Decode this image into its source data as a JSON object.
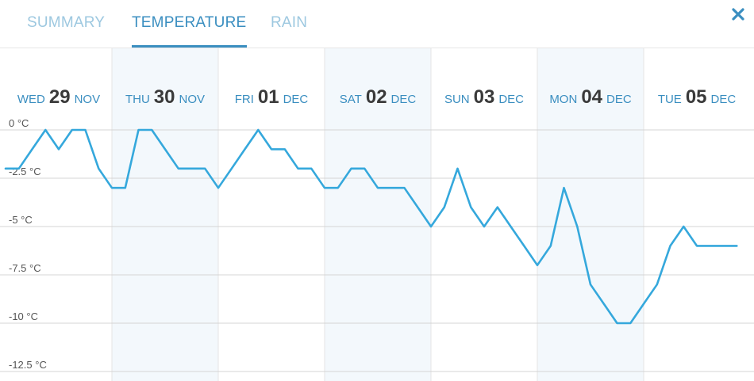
{
  "tabs": [
    {
      "label": "SUMMARY",
      "active": false
    },
    {
      "label": "TEMPERATURE",
      "active": true
    },
    {
      "label": "RAIN",
      "active": false
    }
  ],
  "close_icon": "close-icon",
  "colors": {
    "accent": "#3a8ec0",
    "inactive_tab": "#9dc8e0",
    "line": "#35a8dc",
    "shade": "#f3f8fc",
    "grid": "#d4d4d4"
  },
  "chart_data": {
    "type": "line",
    "days": [
      {
        "dow": "WED",
        "day": "29",
        "mon": "NOV",
        "shaded": false
      },
      {
        "dow": "THU",
        "day": "30",
        "mon": "NOV",
        "shaded": true
      },
      {
        "dow": "FRI",
        "day": "01",
        "mon": "DEC",
        "shaded": false
      },
      {
        "dow": "SAT",
        "day": "02",
        "mon": "DEC",
        "shaded": true
      },
      {
        "dow": "SUN",
        "day": "03",
        "mon": "DEC",
        "shaded": false
      },
      {
        "dow": "MON",
        "day": "04",
        "mon": "DEC",
        "shaded": true
      },
      {
        "dow": "TUE",
        "day": "05",
        "mon": "DEC",
        "shaded": false
      }
    ],
    "y_ticks": [
      {
        "value": 0,
        "label": "0 °C"
      },
      {
        "value": -2.5,
        "label": "-2.5 °C"
      },
      {
        "value": -5,
        "label": "-5 °C"
      },
      {
        "value": -7.5,
        "label": "-7.5 °C"
      },
      {
        "value": -10,
        "label": "-10 °C"
      },
      {
        "value": -12.5,
        "label": "-12.5 °C"
      }
    ],
    "ylim": [
      -12.5,
      0
    ],
    "x_range_days": [
      0,
      7
    ],
    "grid": true,
    "series": [
      {
        "values": [
          [
            0.0,
            -2
          ],
          [
            0.125,
            -2
          ],
          [
            0.25,
            -1
          ],
          [
            0.375,
            0
          ],
          [
            0.5,
            -1
          ],
          [
            0.625,
            0
          ],
          [
            0.75,
            0
          ],
          [
            0.875,
            -2
          ],
          [
            1.0,
            -3
          ],
          [
            1.125,
            -3
          ],
          [
            1.25,
            0
          ],
          [
            1.375,
            0
          ],
          [
            1.5,
            -1
          ],
          [
            1.625,
            -2
          ],
          [
            1.75,
            -2
          ],
          [
            1.875,
            -2
          ],
          [
            2.0,
            -3
          ],
          [
            2.125,
            -2
          ],
          [
            2.25,
            -1
          ],
          [
            2.375,
            0
          ],
          [
            2.5,
            -1
          ],
          [
            2.625,
            -1
          ],
          [
            2.75,
            -2
          ],
          [
            2.875,
            -2
          ],
          [
            3.0,
            -3
          ],
          [
            3.125,
            -3
          ],
          [
            3.25,
            -2
          ],
          [
            3.375,
            -2
          ],
          [
            3.5,
            -3
          ],
          [
            3.625,
            -3
          ],
          [
            3.75,
            -3
          ],
          [
            3.875,
            -4
          ],
          [
            4.0,
            -5
          ],
          [
            4.125,
            -4
          ],
          [
            4.25,
            -2
          ],
          [
            4.375,
            -4
          ],
          [
            4.5,
            -5
          ],
          [
            4.625,
            -4
          ],
          [
            4.75,
            -5
          ],
          [
            4.875,
            -6
          ],
          [
            5.0,
            -7
          ],
          [
            5.125,
            -6
          ],
          [
            5.25,
            -3
          ],
          [
            5.375,
            -5
          ],
          [
            5.5,
            -8
          ],
          [
            5.625,
            -9
          ],
          [
            5.75,
            -10
          ],
          [
            5.875,
            -10
          ],
          [
            6.0,
            -9
          ],
          [
            6.125,
            -8
          ],
          [
            6.25,
            -6
          ],
          [
            6.375,
            -5
          ],
          [
            6.5,
            -6
          ],
          [
            6.625,
            -6
          ],
          [
            6.75,
            -6
          ],
          [
            6.875,
            -6
          ]
        ]
      }
    ]
  }
}
